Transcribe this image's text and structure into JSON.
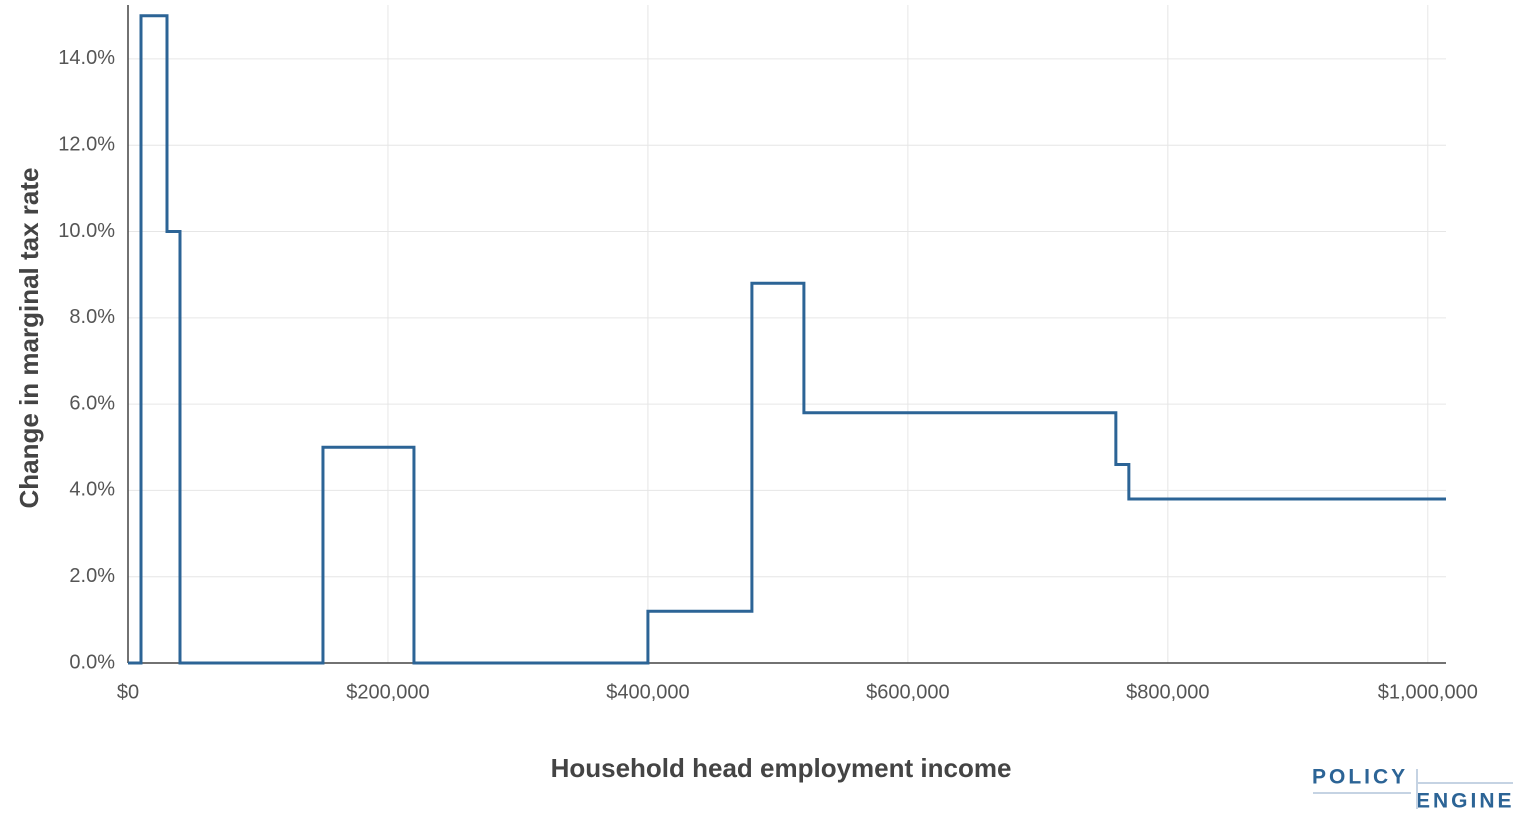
{
  "chart_data": {
    "type": "line",
    "x_label": "Household head employment income",
    "y_label": "Change in marginal tax rate",
    "series": [
      {
        "color": "#2c6496",
        "x": [
          0,
          10000,
          10000,
          30000,
          30000,
          40000,
          40000,
          150000,
          150000,
          220000,
          220000,
          400000,
          400000,
          480000,
          480000,
          520000,
          520000,
          760000,
          760000,
          770000,
          770000,
          1014000
        ],
        "values": [
          0,
          0,
          15,
          15,
          10,
          10,
          0,
          0,
          5,
          5,
          0,
          0,
          1.2,
          1.2,
          8.8,
          8.8,
          5.8,
          5.8,
          4.6,
          4.6,
          3.8,
          3.8
        ]
      }
    ],
    "xlim": [
      0,
      1014000
    ],
    "ylim": [
      0,
      15.25
    ],
    "xticks": [
      {
        "value": 0,
        "label": "$0"
      },
      {
        "value": 200000,
        "label": "$200,000"
      },
      {
        "value": 400000,
        "label": "$400,000"
      },
      {
        "value": 600000,
        "label": "$600,000"
      },
      {
        "value": 800000,
        "label": "$800,000"
      },
      {
        "value": 1000000,
        "label": "$1,000,000"
      }
    ],
    "yticks": [
      {
        "value": 0,
        "label": "0.0%"
      },
      {
        "value": 2,
        "label": "2.0%"
      },
      {
        "value": 4,
        "label": "4.0%"
      },
      {
        "value": 6,
        "label": "6.0%"
      },
      {
        "value": 8,
        "label": "8.0%"
      },
      {
        "value": 10,
        "label": "10.0%"
      },
      {
        "value": 12,
        "label": "12.0%"
      },
      {
        "value": 14,
        "label": "14.0%"
      }
    ],
    "grid": true
  },
  "logo": {
    "top": "POLICY",
    "bottom": "ENGINE"
  }
}
